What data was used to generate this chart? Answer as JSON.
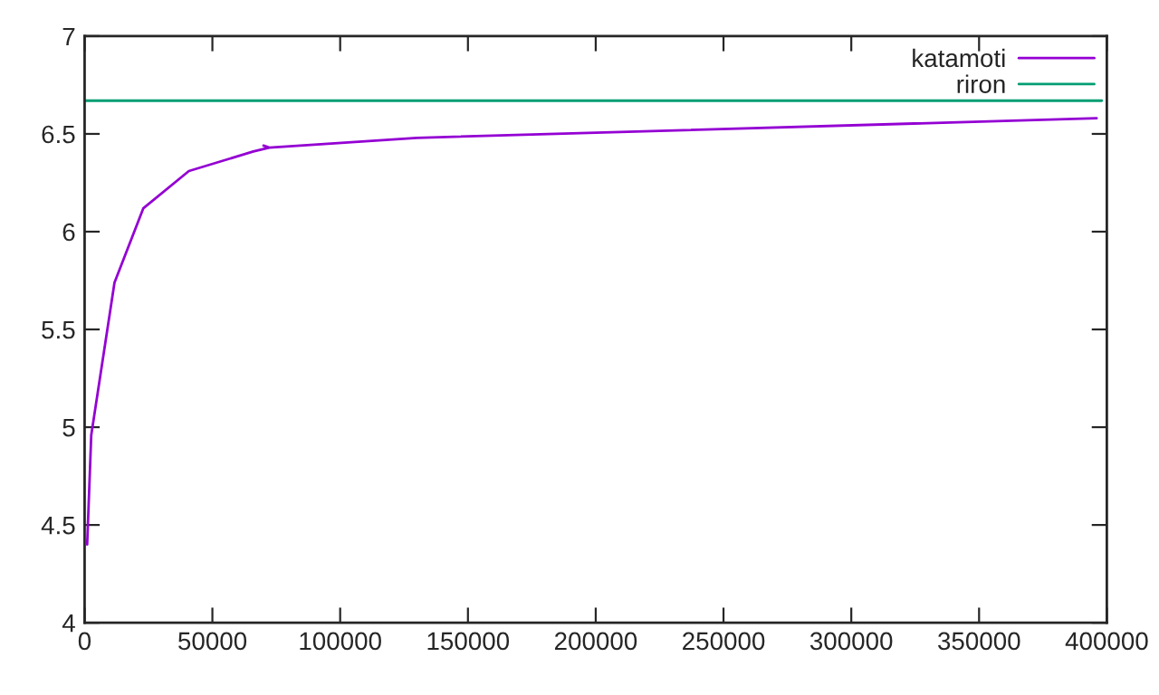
{
  "chart_data": {
    "type": "line",
    "series": [
      {
        "name": "katamoti",
        "color": "#9400d3",
        "x": [
          1000,
          2600,
          11700,
          23000,
          40800,
          66000,
          72300,
          70000,
          72300,
          130000,
          396000
        ],
        "values": [
          4.4,
          4.96,
          5.74,
          6.12,
          6.31,
          6.41,
          6.43,
          6.44,
          6.43,
          6.48,
          6.58
        ]
      },
      {
        "name": "riron",
        "color": "#009e73",
        "x": [
          0,
          398000
        ],
        "values": [
          6.67,
          6.67
        ]
      }
    ],
    "xlim": [
      0,
      400000
    ],
    "xticks": [
      0,
      50000,
      100000,
      150000,
      200000,
      250000,
      300000,
      350000,
      400000
    ],
    "ylim": [
      4,
      7
    ],
    "yticks": [
      4,
      4.5,
      5,
      5.5,
      6,
      6.5,
      7
    ],
    "grid": false,
    "legend": "top right",
    "marker": "none",
    "line_style": "solid"
  }
}
